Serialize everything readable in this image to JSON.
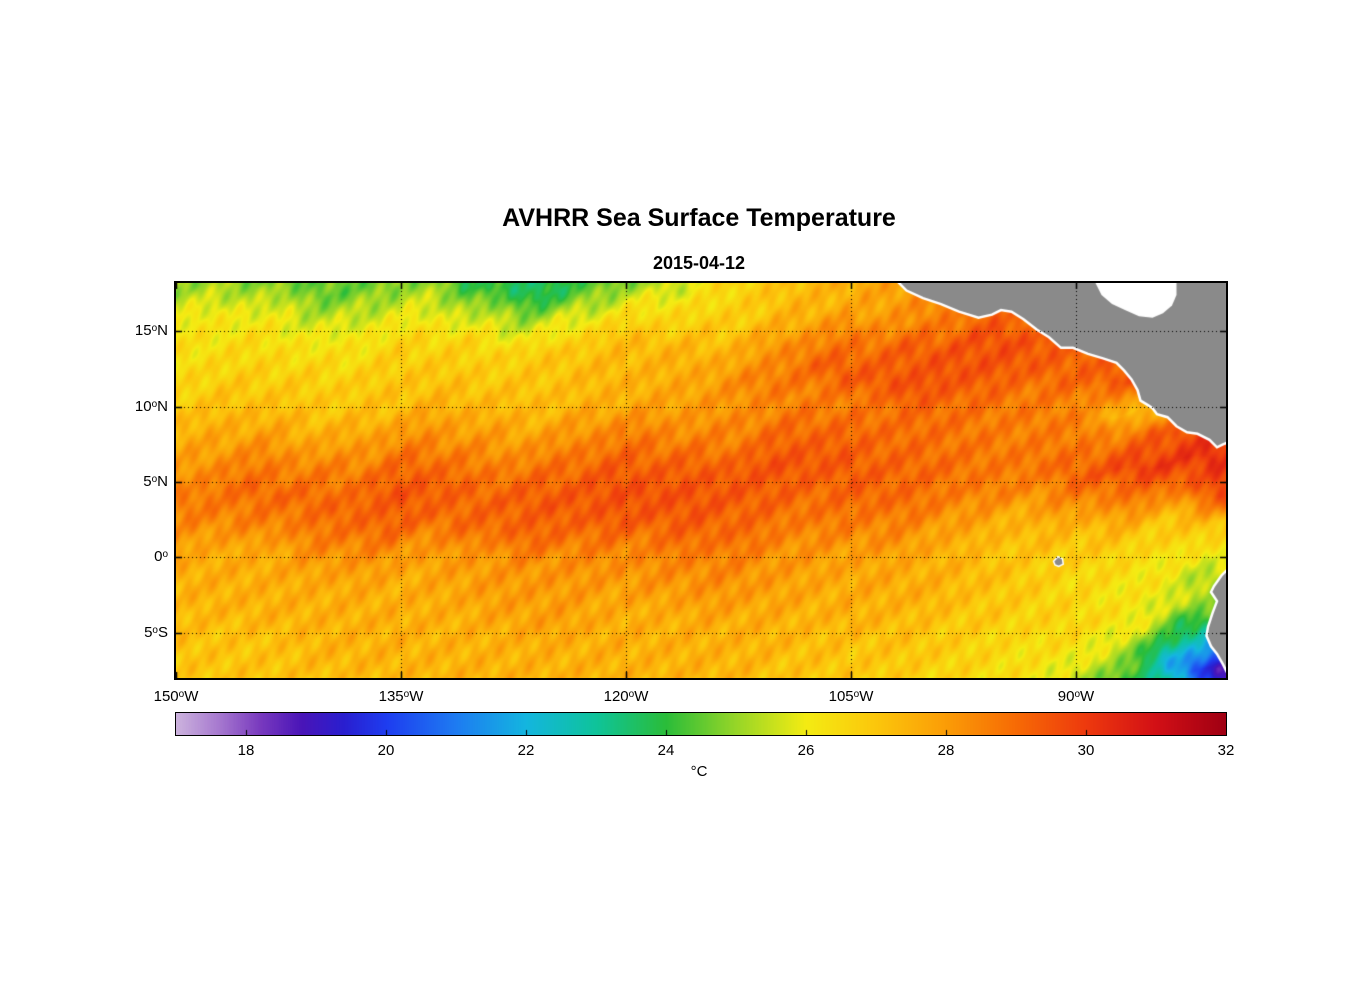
{
  "chart_data": {
    "type": "heatmap",
    "title": "AVHRR Sea Surface Temperature",
    "subtitle": "2015-04-12",
    "lon_range_w": [
      150,
      80
    ],
    "lat_range_n": [
      18.2,
      -8.0
    ],
    "lon_deg_west": [
      150,
      145,
      140,
      135,
      130,
      125,
      120,
      115,
      110,
      105,
      100,
      95,
      90,
      85,
      80
    ],
    "lat_deg_north": [
      18,
      16,
      14,
      12,
      10,
      8,
      6,
      4,
      2,
      0,
      -2,
      -4,
      -6,
      -8
    ],
    "sst_c": [
      [
        25.3,
        24.8,
        24.5,
        24.9,
        24.1,
        23.6,
        24.8,
        26.2,
        26.9,
        27.6,
        28.2,
        28.5,
        28.5,
        28.5,
        28.5
      ],
      [
        26.2,
        25.8,
        25.6,
        25.9,
        25.4,
        25.6,
        26.1,
        26.7,
        27.2,
        27.9,
        28.5,
        28.8,
        28.8,
        28.8,
        28.8
      ],
      [
        26.3,
        26.4,
        26.3,
        26.6,
        26.6,
        26.9,
        27.1,
        27.5,
        28.1,
        28.8,
        29.4,
        29.6,
        29.2,
        29.0,
        29.0
      ],
      [
        26.6,
        26.7,
        26.8,
        27.0,
        26.9,
        27.1,
        27.4,
        27.9,
        28.6,
        29.3,
        29.6,
        29.4,
        29.0,
        29.6,
        29.6
      ],
      [
        27.0,
        27.1,
        27.1,
        27.2,
        27.4,
        27.4,
        27.6,
        28.0,
        28.4,
        28.7,
        29.0,
        28.9,
        28.4,
        26.4,
        29.0
      ],
      [
        27.6,
        27.7,
        27.8,
        28.1,
        28.0,
        28.2,
        28.4,
        28.6,
        29.0,
        29.1,
        29.0,
        28.6,
        28.7,
        29.0,
        29.8
      ],
      [
        28.1,
        28.5,
        28.6,
        29.0,
        28.6,
        29.0,
        29.1,
        29.4,
        29.5,
        29.4,
        29.0,
        28.7,
        29.1,
        29.9,
        30.4
      ],
      [
        28.6,
        29.0,
        29.1,
        29.5,
        29.1,
        29.4,
        29.6,
        29.5,
        29.2,
        29.1,
        28.7,
        28.6,
        28.2,
        28.8,
        29.6
      ],
      [
        28.2,
        28.6,
        28.7,
        29.1,
        29.0,
        29.1,
        29.4,
        29.1,
        28.8,
        28.6,
        28.1,
        27.7,
        27.2,
        27.1,
        27.3
      ],
      [
        27.7,
        27.7,
        28.0,
        28.1,
        28.1,
        28.2,
        28.5,
        28.5,
        28.2,
        28.0,
        27.6,
        27.1,
        26.7,
        26.5,
        26.2
      ],
      [
        27.5,
        27.6,
        27.6,
        27.6,
        28.0,
        28.0,
        28.1,
        28.1,
        28.0,
        27.7,
        27.5,
        27.1,
        26.6,
        26.1,
        25.0
      ],
      [
        27.2,
        27.5,
        27.5,
        27.6,
        27.6,
        27.9,
        27.6,
        27.6,
        27.6,
        27.5,
        27.1,
        27.0,
        26.6,
        25.7,
        24.2
      ],
      [
        27.1,
        27.1,
        27.4,
        27.5,
        27.5,
        27.5,
        27.6,
        27.5,
        27.4,
        27.1,
        27.0,
        26.6,
        26.1,
        24.6,
        21.5
      ],
      [
        27.0,
        27.1,
        27.1,
        27.4,
        27.5,
        27.5,
        27.5,
        27.4,
        27.1,
        27.0,
        26.6,
        26.4,
        25.7,
        23.6,
        18.5
      ]
    ],
    "grid_lons_w": [
      135,
      120,
      105,
      90
    ],
    "grid_lats_n": [
      15,
      10,
      5,
      0,
      -5
    ],
    "tick_lons_w": [
      150,
      135,
      120,
      105,
      90
    ],
    "colormap": [
      [
        17.0,
        "#cdb4de"
      ],
      [
        17.6,
        "#a87bd0"
      ],
      [
        18.2,
        "#7a3bbf"
      ],
      [
        18.8,
        "#4a15b8"
      ],
      [
        19.4,
        "#2a1fd0"
      ],
      [
        20.0,
        "#1f3df0"
      ],
      [
        21.0,
        "#1e7cf2"
      ],
      [
        22.0,
        "#14b6e0"
      ],
      [
        23.0,
        "#0fc49b"
      ],
      [
        24.0,
        "#2bbd3a"
      ],
      [
        25.0,
        "#97d628"
      ],
      [
        26.0,
        "#f4ec13"
      ],
      [
        27.0,
        "#fcc70c"
      ],
      [
        28.0,
        "#fb9d07"
      ],
      [
        29.0,
        "#f76b05"
      ],
      [
        30.0,
        "#ee3a0e"
      ],
      [
        31.0,
        "#d31016"
      ],
      [
        32.0,
        "#a00013"
      ]
    ],
    "colorbar": {
      "range": [
        17,
        32
      ],
      "ticks": [
        18,
        20,
        22,
        24,
        26,
        28,
        30,
        32
      ],
      "unit": "°C"
    },
    "land_color": "#8a8a8a",
    "land_outline": "#ffffff",
    "land_masks": {
      "central_america": [
        [
          102.0,
          18.4
        ],
        [
          101.3,
          17.7
        ],
        [
          100.2,
          17.2
        ],
        [
          99.0,
          16.8
        ],
        [
          97.8,
          16.3
        ],
        [
          96.5,
          15.9
        ],
        [
          95.6,
          16.1
        ],
        [
          95.0,
          16.4
        ],
        [
          94.3,
          16.3
        ],
        [
          93.5,
          15.8
        ],
        [
          92.6,
          15.1
        ],
        [
          91.8,
          14.6
        ],
        [
          91.0,
          13.9
        ],
        [
          90.2,
          13.9
        ],
        [
          89.2,
          13.5
        ],
        [
          88.2,
          13.2
        ],
        [
          87.3,
          12.9
        ],
        [
          86.8,
          12.4
        ],
        [
          86.3,
          11.8
        ],
        [
          85.9,
          11.1
        ],
        [
          85.7,
          10.4
        ],
        [
          85.2,
          10.1
        ],
        [
          84.9,
          9.9
        ],
        [
          84.6,
          9.5
        ],
        [
          83.9,
          9.3
        ],
        [
          83.3,
          8.7
        ],
        [
          82.6,
          8.3
        ],
        [
          81.9,
          8.2
        ],
        [
          81.1,
          7.8
        ],
        [
          80.6,
          7.3
        ],
        [
          80.2,
          7.5
        ],
        [
          79.7,
          7.7
        ],
        [
          79.7,
          18.4
        ]
      ],
      "nodata_region": [
        [
          88.8,
          18.4
        ],
        [
          88.3,
          17.4
        ],
        [
          87.6,
          16.8
        ],
        [
          86.7,
          16.4
        ],
        [
          85.8,
          16.0
        ],
        [
          84.9,
          15.9
        ],
        [
          84.2,
          16.2
        ],
        [
          83.6,
          16.7
        ],
        [
          83.3,
          17.4
        ],
        [
          83.3,
          18.4
        ]
      ],
      "south_america": [
        [
          79.7,
          -0.6
        ],
        [
          80.3,
          -1.2
        ],
        [
          80.8,
          -1.9
        ],
        [
          81.0,
          -2.3
        ],
        [
          80.6,
          -2.9
        ],
        [
          80.9,
          -3.7
        ],
        [
          81.2,
          -4.6
        ],
        [
          81.3,
          -5.2
        ],
        [
          81.0,
          -5.9
        ],
        [
          80.6,
          -6.4
        ],
        [
          80.2,
          -7.1
        ],
        [
          79.9,
          -7.7
        ],
        [
          79.7,
          -8.2
        ]
      ],
      "galapagos": [
        [
          91.5,
          -0.25
        ],
        [
          91.2,
          0.05
        ],
        [
          90.9,
          -0.1
        ],
        [
          90.85,
          -0.45
        ],
        [
          91.15,
          -0.6
        ],
        [
          91.4,
          -0.5
        ]
      ]
    }
  },
  "axes": {
    "deg": "o",
    "yticks": [
      {
        "num": "15",
        "dir": "N"
      },
      {
        "num": "10",
        "dir": "N"
      },
      {
        "num": "5",
        "dir": "N"
      },
      {
        "num": "0",
        "dir": ""
      },
      {
        "num": "5",
        "dir": "S"
      }
    ],
    "xticks": [
      {
        "num": "150",
        "dir": "W"
      },
      {
        "num": "135",
        "dir": "W"
      },
      {
        "num": "120",
        "dir": "W"
      },
      {
        "num": "105",
        "dir": "W"
      },
      {
        "num": "90",
        "dir": "W"
      }
    ]
  },
  "colorbar": {
    "tick_labels": [
      "18",
      "20",
      "22",
      "24",
      "26",
      "28",
      "30",
      "32"
    ],
    "unit": "°C"
  }
}
